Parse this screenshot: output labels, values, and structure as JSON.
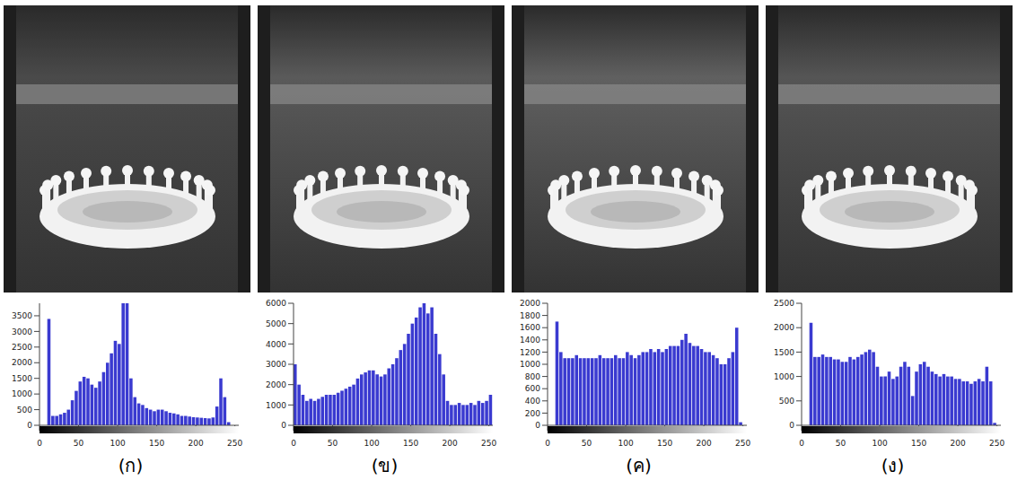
{
  "chart_data": [
    {
      "type": "histogram",
      "title": "(ก)",
      "color": "#3a3ad0",
      "grid": false,
      "bins": [
        0,
        5,
        10,
        15,
        20,
        25,
        30,
        35,
        40,
        45,
        50,
        55,
        60,
        65,
        70,
        75,
        80,
        85,
        90,
        95,
        100,
        105,
        110,
        115,
        120,
        125,
        130,
        135,
        140,
        145,
        150,
        155,
        160,
        165,
        170,
        175,
        180,
        185,
        190,
        195,
        200,
        205,
        210,
        215,
        220,
        225,
        230,
        235,
        240,
        245,
        250,
        255
      ],
      "values": [
        0,
        0,
        3400,
        300,
        300,
        350,
        400,
        500,
        800,
        1100,
        1400,
        1550,
        1500,
        1300,
        1200,
        1400,
        1700,
        2000,
        2300,
        2700,
        2600,
        3900,
        3900,
        1500,
        900,
        700,
        650,
        550,
        500,
        450,
        500,
        500,
        450,
        400,
        380,
        350,
        300,
        300,
        280,
        260,
        250,
        240,
        230,
        220,
        250,
        600,
        1500,
        900,
        100,
        0,
        0
      ],
      "xlim": [
        0,
        255
      ],
      "xticks": [
        0,
        50,
        100,
        150,
        200,
        250
      ],
      "ylim": [
        0,
        3900
      ],
      "yticks": [
        0,
        500,
        1000,
        1500,
        2000,
        2500,
        3000,
        3500
      ]
    },
    {
      "type": "histogram",
      "title": "(ข)",
      "color": "#3a3ad0",
      "grid": false,
      "bins": [
        0,
        5,
        10,
        15,
        20,
        25,
        30,
        35,
        40,
        45,
        50,
        55,
        60,
        65,
        70,
        75,
        80,
        85,
        90,
        95,
        100,
        105,
        110,
        115,
        120,
        125,
        130,
        135,
        140,
        145,
        150,
        155,
        160,
        165,
        170,
        175,
        180,
        185,
        190,
        195,
        200,
        205,
        210,
        215,
        220,
        225,
        230,
        235,
        240,
        245,
        250,
        255
      ],
      "values": [
        3000,
        2000,
        1500,
        1200,
        1300,
        1200,
        1300,
        1400,
        1500,
        1500,
        1500,
        1600,
        1700,
        1800,
        1900,
        2000,
        2300,
        2500,
        2600,
        2700,
        2700,
        2500,
        2400,
        2500,
        2800,
        3000,
        3300,
        3700,
        4000,
        4500,
        5000,
        5300,
        5800,
        6000,
        5500,
        5800,
        4500,
        3500,
        2500,
        1200,
        1000,
        1000,
        1100,
        1000,
        1000,
        1100,
        1000,
        1200,
        1100,
        1200,
        1500
      ],
      "xlim": [
        0,
        255
      ],
      "xticks": [
        0,
        50,
        100,
        150,
        200,
        250
      ],
      "ylim": [
        0,
        6000
      ],
      "yticks": [
        0,
        1000,
        2000,
        3000,
        4000,
        5000,
        6000
      ]
    },
    {
      "type": "histogram",
      "title": "(ค)",
      "color": "#3a3ad0",
      "grid": false,
      "bins": [
        0,
        5,
        10,
        15,
        20,
        25,
        30,
        35,
        40,
        45,
        50,
        55,
        60,
        65,
        70,
        75,
        80,
        85,
        90,
        95,
        100,
        105,
        110,
        115,
        120,
        125,
        130,
        135,
        140,
        145,
        150,
        155,
        160,
        165,
        170,
        175,
        180,
        185,
        190,
        195,
        200,
        205,
        210,
        215,
        220,
        225,
        230,
        235,
        240,
        245,
        250,
        255
      ],
      "values": [
        0,
        0,
        1700,
        1200,
        1100,
        1100,
        1100,
        1150,
        1100,
        1100,
        1100,
        1100,
        1100,
        1150,
        1100,
        1100,
        1100,
        1150,
        1100,
        1100,
        1200,
        1150,
        1100,
        1150,
        1200,
        1200,
        1250,
        1200,
        1250,
        1200,
        1250,
        1300,
        1300,
        1300,
        1400,
        1500,
        1350,
        1300,
        1300,
        1250,
        1200,
        1200,
        1150,
        1100,
        1000,
        1000,
        1100,
        1200,
        1600,
        50,
        0
      ],
      "xlim": [
        0,
        255
      ],
      "xticks": [
        0,
        50,
        100,
        150,
        200,
        250
      ],
      "ylim": [
        0,
        2000
      ],
      "yticks": [
        0,
        200,
        400,
        600,
        800,
        1000,
        1200,
        1400,
        1600,
        1800,
        2000
      ]
    },
    {
      "type": "histogram",
      "title": "(ง)",
      "color": "#3a3ad0",
      "grid": false,
      "bins": [
        0,
        5,
        10,
        15,
        20,
        25,
        30,
        35,
        40,
        45,
        50,
        55,
        60,
        65,
        70,
        75,
        80,
        85,
        90,
        95,
        100,
        105,
        110,
        115,
        120,
        125,
        130,
        135,
        140,
        145,
        150,
        155,
        160,
        165,
        170,
        175,
        180,
        185,
        190,
        195,
        200,
        205,
        210,
        215,
        220,
        225,
        230,
        235,
        240,
        245,
        250,
        255
      ],
      "values": [
        0,
        0,
        2100,
        1400,
        1400,
        1450,
        1400,
        1400,
        1350,
        1350,
        1300,
        1300,
        1400,
        1350,
        1400,
        1450,
        1500,
        1550,
        1500,
        1200,
        1000,
        1000,
        1100,
        950,
        1000,
        1200,
        1300,
        1200,
        600,
        1100,
        1250,
        1300,
        1200,
        1100,
        1050,
        1000,
        1050,
        1000,
        1000,
        950,
        950,
        900,
        900,
        850,
        900,
        950,
        900,
        1200,
        900,
        50,
        0
      ],
      "xlim": [
        0,
        255
      ],
      "xticks": [
        0,
        50,
        100,
        150,
        200,
        250
      ],
      "ylim": [
        0,
        2500
      ],
      "yticks": [
        0,
        500,
        1000,
        1500,
        2000,
        2500
      ]
    }
  ]
}
